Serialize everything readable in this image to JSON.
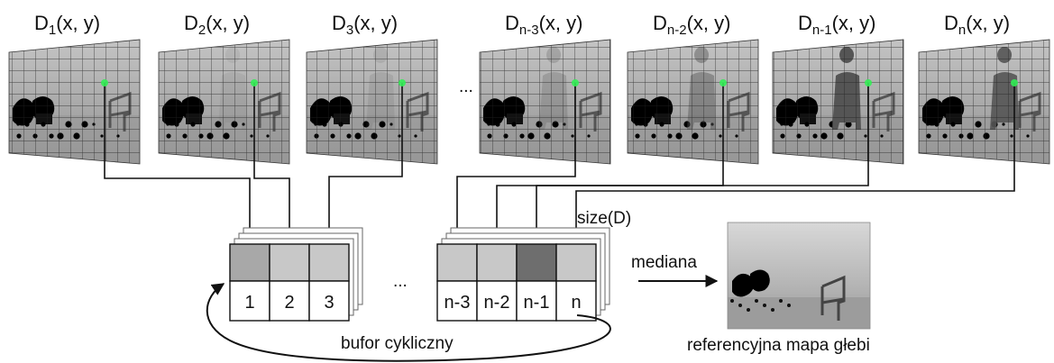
{
  "frames": [
    {
      "prefix": "D",
      "sub": "1",
      "suffix": "(x, y)",
      "person": 0.0
    },
    {
      "prefix": "D",
      "sub": "2",
      "suffix": "(x, y)",
      "person": 0.1
    },
    {
      "prefix": "D",
      "sub": "3",
      "suffix": "(x, y)",
      "person": 0.15
    },
    {
      "prefix": "D",
      "sub": "n-3",
      "suffix": "(x, y)",
      "person": 0.25
    },
    {
      "prefix": "D",
      "sub": "n-2",
      "suffix": "(x, y)",
      "person": 0.45
    },
    {
      "prefix": "D",
      "sub": "n-1",
      "suffix": "(x, y)",
      "person": 1.0
    },
    {
      "prefix": "D",
      "sub": "n",
      "suffix": "(x, y)",
      "person": 0.9
    }
  ],
  "ellipsis_top": "...",
  "buffer_cells_left": [
    "1",
    "2",
    "3"
  ],
  "buffer_cells_right": [
    "n-3",
    "n-2",
    "n-1",
    "n"
  ],
  "ellipsis_buffer": "...",
  "size_label": "size(D)",
  "buffer_label": "bufor cykliczny",
  "median_label": "mediana",
  "result_label": "referencyjna mapa głebi",
  "colors": {
    "cell_light": "#c8c8c8",
    "cell_mid": "#a8a8a8",
    "cell_dark": "#6e6e6e",
    "line": "#111111",
    "pixel_marker": "#33ee55"
  }
}
